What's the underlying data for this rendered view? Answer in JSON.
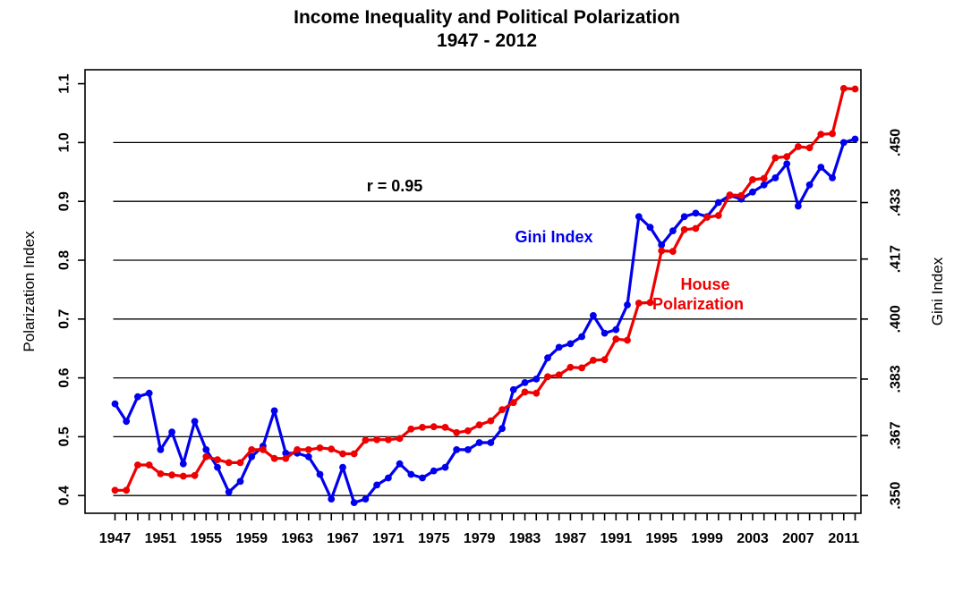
{
  "title": {
    "line1": "Income Inequality and Political Polarization",
    "line2": "1947 - 2012"
  },
  "annotations": {
    "correlation": "r = 0.95",
    "gini_series_label": "Gini Index",
    "house_label_line1": "House",
    "house_label_line2": "Polarization"
  },
  "axes": {
    "left": {
      "title": "Polarization Index",
      "tick_labels": [
        "0.4",
        "0.5",
        "0.6",
        "0.7",
        "0.8",
        "0.9",
        "1.0",
        "1.1"
      ],
      "tick_values": [
        0.4,
        0.5,
        0.6,
        0.7,
        0.8,
        0.9,
        1.0,
        1.1
      ]
    },
    "right": {
      "title": "Gini Index",
      "tick_labels": [
        ".350",
        ".367",
        ".383",
        ".400",
        ".417",
        ".433",
        ".450"
      ],
      "tick_values": [
        0.35,
        0.367,
        0.383,
        0.4,
        0.417,
        0.433,
        0.45
      ]
    },
    "x": {
      "tick_year_start": 1947,
      "tick_year_end": 2012,
      "label_years": [
        1947,
        1951,
        1955,
        1959,
        1963,
        1967,
        1971,
        1975,
        1979,
        1983,
        1987,
        1991,
        1995,
        1999,
        2003,
        2007,
        2011
      ]
    }
  },
  "chart_data": {
    "type": "line",
    "title": "Income Inequality and Political Polarization 1947 - 2012",
    "x_range": [
      1947,
      2012
    ],
    "ylabel_left": "Polarization Index",
    "ylabel_right": "Gini Index",
    "ylim_polarization": [
      0.37,
      1.13
    ],
    "grid": "horizontal black lines at 0.4-1.0 polarization, no vertical grid",
    "gridlines_polarization": [
      0.4,
      0.5,
      0.6,
      0.7,
      0.8,
      0.9,
      1.0
    ],
    "right_axis_mapping": "polarization = 0.4 + 6 * (gini - 0.350)",
    "series": [
      {
        "name": "Gini Index",
        "axis": "right",
        "color": "#0000EE",
        "marker": "filled-circle",
        "values": [
          0.376,
          0.371,
          0.378,
          0.379,
          0.363,
          0.368,
          0.359,
          0.371,
          0.363,
          0.358,
          0.351,
          0.354,
          0.361,
          0.364,
          0.374,
          0.362,
          0.362,
          0.361,
          0.356,
          0.349,
          0.358,
          0.348,
          0.349,
          0.353,
          0.355,
          0.359,
          0.356,
          0.355,
          0.357,
          0.358,
          0.363,
          0.363,
          0.365,
          0.365,
          0.369,
          0.38,
          0.382,
          0.383,
          0.389,
          0.392,
          0.393,
          0.395,
          0.401,
          0.396,
          0.397,
          0.404,
          0.429,
          0.426,
          0.421,
          0.425,
          0.429,
          0.43,
          0.429,
          0.433,
          0.435,
          0.434,
          0.436,
          0.438,
          0.44,
          0.444,
          0.432,
          0.438,
          0.443,
          0.44,
          0.45,
          0.451
        ]
      },
      {
        "name": "House Polarization",
        "axis": "left",
        "color": "#EE0000",
        "marker": "filled-circle",
        "values": [
          0.409,
          0.409,
          0.452,
          0.452,
          0.437,
          0.435,
          0.433,
          0.434,
          0.466,
          0.461,
          0.456,
          0.456,
          0.478,
          0.478,
          0.463,
          0.463,
          0.478,
          0.478,
          0.481,
          0.479,
          0.471,
          0.471,
          0.494,
          0.495,
          0.495,
          0.497,
          0.513,
          0.516,
          0.517,
          0.516,
          0.507,
          0.51,
          0.52,
          0.527,
          0.546,
          0.558,
          0.576,
          0.574,
          0.602,
          0.605,
          0.618,
          0.617,
          0.63,
          0.631,
          0.666,
          0.664,
          0.727,
          0.728,
          0.816,
          0.815,
          0.852,
          0.854,
          0.873,
          0.876,
          0.911,
          0.91,
          0.937,
          0.939,
          0.974,
          0.976,
          0.993,
          0.991,
          1.014,
          1.015,
          1.092,
          1.091
        ]
      }
    ]
  },
  "colors": {
    "background": "#FFFFFF",
    "frame": "#000000",
    "text": "#000000",
    "gini_blue": "#0000EE",
    "house_red": "#EE0000"
  }
}
